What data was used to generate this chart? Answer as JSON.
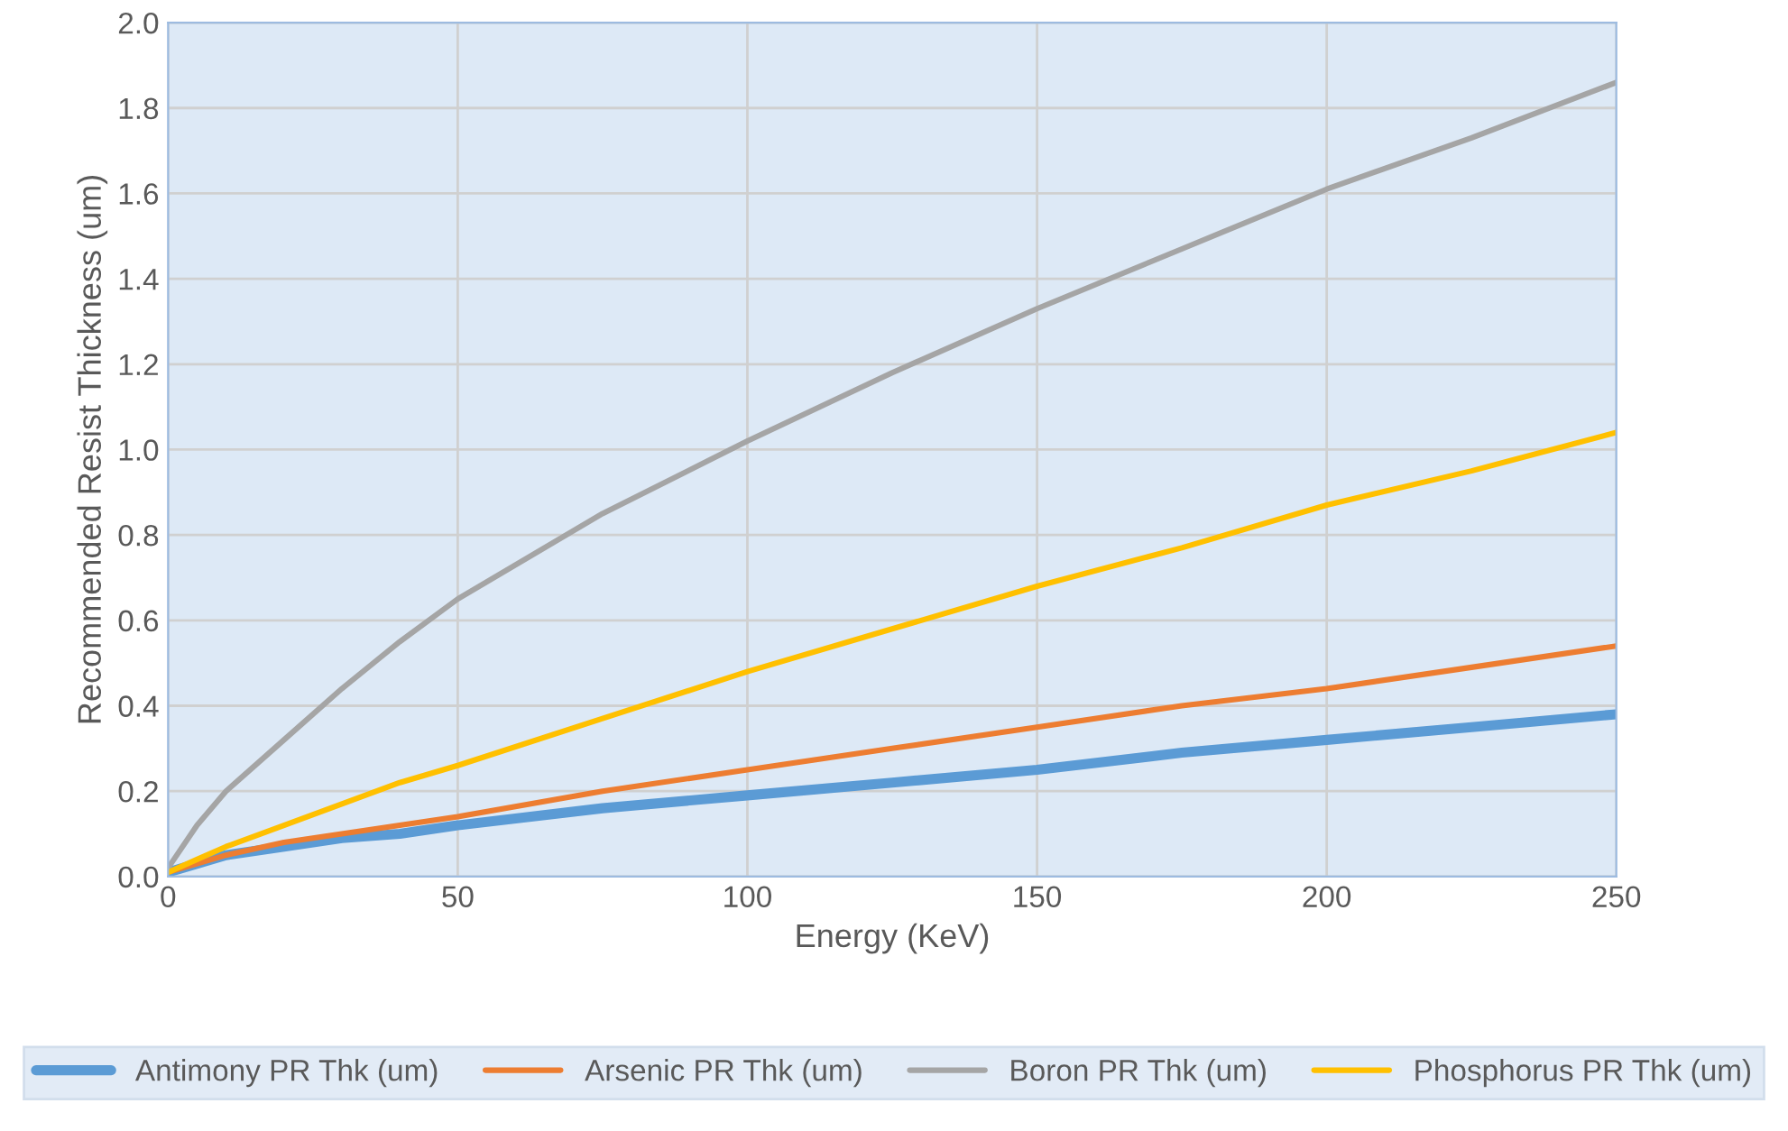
{
  "chart_data": {
    "type": "line",
    "xlabel": "Energy (KeV)",
    "ylabel": "Recommended Resist Thickness (um)",
    "x": [
      0,
      5,
      10,
      20,
      30,
      40,
      50,
      75,
      100,
      125,
      150,
      175,
      200,
      225,
      250
    ],
    "series": [
      {
        "name": "Antimony PR Thk (um)",
        "color": "#5b9bd5",
        "values": [
          0.01,
          0.03,
          0.05,
          0.07,
          0.09,
          0.1,
          0.12,
          0.16,
          0.19,
          0.22,
          0.25,
          0.29,
          0.32,
          0.35,
          0.38
        ]
      },
      {
        "name": "Arsenic PR Thk (um)",
        "color": "#ed7d31",
        "values": [
          0.01,
          0.03,
          0.05,
          0.08,
          0.1,
          0.12,
          0.14,
          0.2,
          0.25,
          0.3,
          0.35,
          0.4,
          0.44,
          0.49,
          0.54
        ]
      },
      {
        "name": "Boron PR Thk (um)",
        "color": "#a5a5a5",
        "values": [
          0.02,
          0.12,
          0.2,
          0.32,
          0.44,
          0.55,
          0.65,
          0.85,
          1.02,
          1.18,
          1.33,
          1.47,
          1.61,
          1.73,
          1.86
        ]
      },
      {
        "name": "Phosphorus PR Thk (um)",
        "color": "#ffc000",
        "values": [
          0.01,
          0.04,
          0.07,
          0.12,
          0.17,
          0.22,
          0.26,
          0.37,
          0.48,
          0.58,
          0.68,
          0.77,
          0.87,
          0.95,
          1.04
        ]
      }
    ],
    "xlim": [
      0,
      250
    ],
    "xticks": [
      0,
      50,
      100,
      150,
      200,
      250
    ],
    "ylim": [
      0,
      2.0
    ],
    "yticks": [
      {
        "value": 0,
        "label": "0.0"
      },
      {
        "value": 0.2,
        "label": "0.2"
      },
      {
        "value": 0.4,
        "label": "0.4"
      },
      {
        "value": 0.6,
        "label": "0.6"
      },
      {
        "value": 0.8,
        "label": "0.8"
      },
      {
        "value": 1.0,
        "label": "1.0"
      },
      {
        "value": 1.2,
        "label": "1.2"
      },
      {
        "value": 1.4,
        "label": "1.4"
      },
      {
        "value": 1.6,
        "label": "1.6"
      },
      {
        "value": 1.8,
        "label": "1.8"
      },
      {
        "value": 2.0,
        "label": "2.0"
      }
    ],
    "grid": true,
    "legend": "bottom",
    "marker": "none",
    "line_style": "solid"
  }
}
